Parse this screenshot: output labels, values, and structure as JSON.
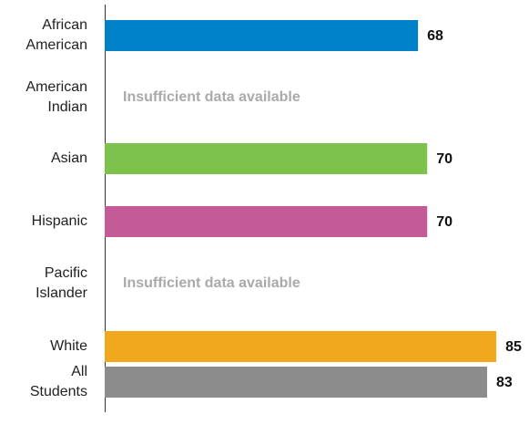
{
  "chart_data": {
    "type": "bar",
    "orientation": "horizontal",
    "categories": [
      "African American",
      "American Indian",
      "Asian",
      "Hispanic",
      "Pacific Islander",
      "White",
      "All Students"
    ],
    "values": [
      68,
      null,
      70,
      70,
      null,
      85,
      83
    ],
    "colors": [
      "#0082c8",
      null,
      "#7dc24b",
      "#c45b96",
      null,
      "#f0a81e",
      "#8c8c8c"
    ],
    "missing_label": "Insufficient data available",
    "xlim": [
      0,
      100
    ]
  }
}
